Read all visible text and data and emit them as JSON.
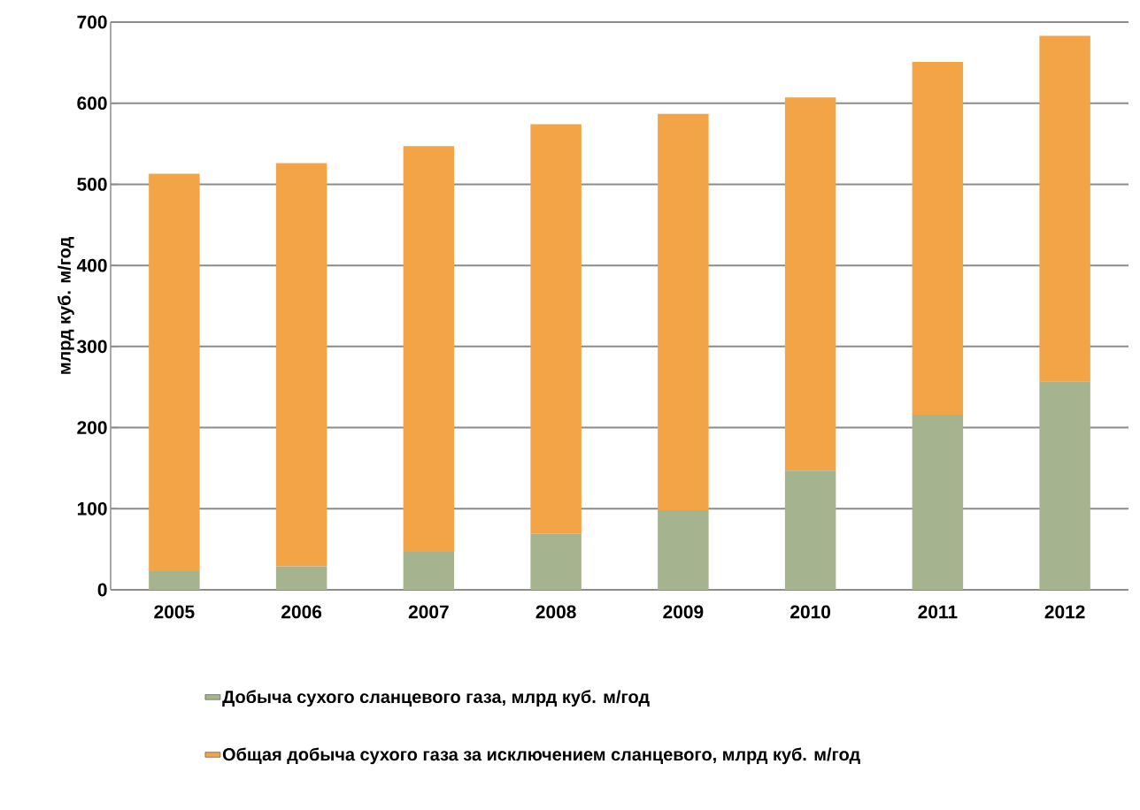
{
  "chart_data": {
    "type": "bar",
    "stacked": true,
    "ylabel": "млрд куб. м/год",
    "categories": [
      "2005",
      "2006",
      "2007",
      "2008",
      "2009",
      "2010",
      "2011",
      "2012"
    ],
    "series": [
      {
        "name": "Добыча сухого сланцевого газа, млрд куб. м/год",
        "color": "#a6b38f",
        "values": [
          23,
          29,
          47,
          69,
          98,
          147,
          216,
          257
        ]
      },
      {
        "name": "Общая добыча сухого газа за исключением сланцевого, млрд куб. м/год",
        "color": "#f2a447",
        "values": [
          490,
          497,
          500,
          505,
          489,
          460,
          435,
          426
        ]
      }
    ],
    "ylim": [
      0,
      700
    ],
    "yticks": [
      0,
      100,
      200,
      300,
      400,
      500,
      600,
      700
    ],
    "grid": "y",
    "legend": "bottom"
  }
}
